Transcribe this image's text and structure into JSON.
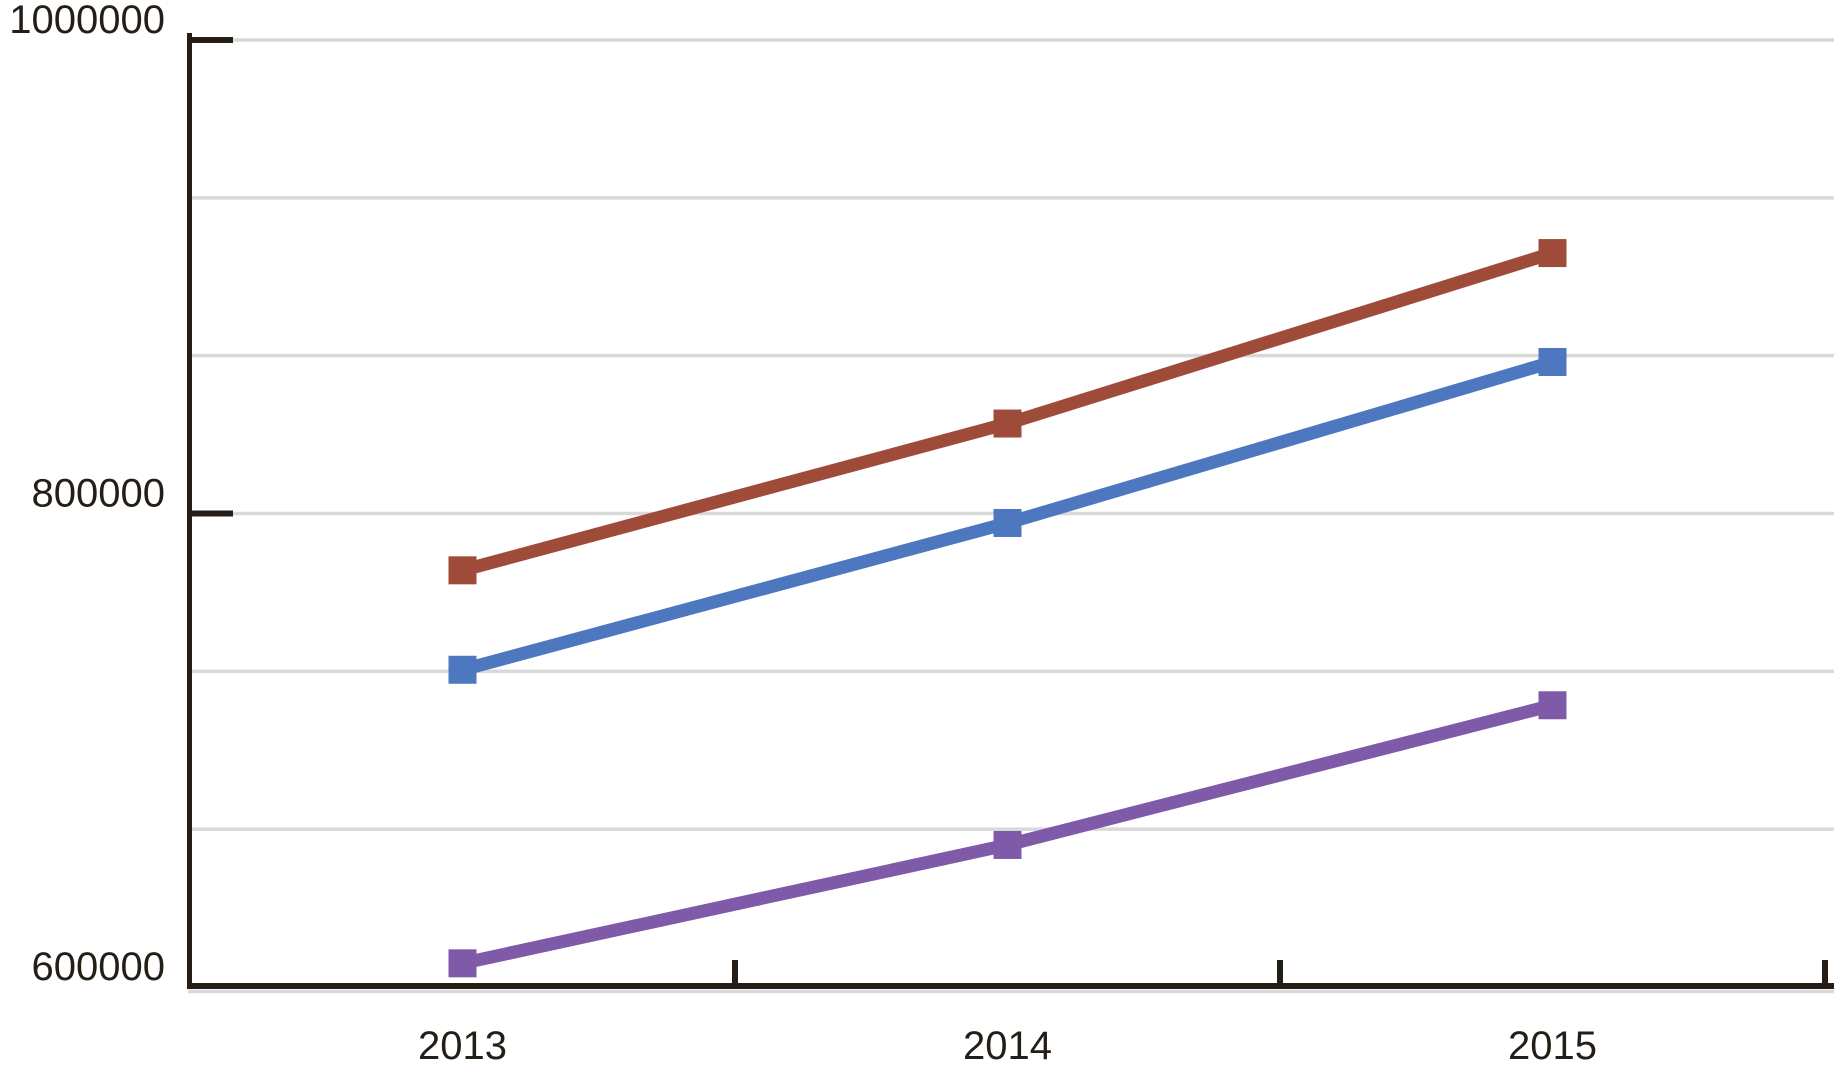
{
  "chart_data": {
    "type": "line",
    "title": "",
    "xlabel": "",
    "ylabel": "",
    "categories": [
      "2013",
      "2014",
      "2015"
    ],
    "series": [
      {
        "name": "red-series",
        "color": "#9e4b39",
        "values": [
          776000,
          838000,
          910000
        ]
      },
      {
        "name": "blue-series",
        "color": "#4d77be",
        "values": [
          734000,
          796000,
          864000
        ]
      },
      {
        "name": "purple-series",
        "color": "#7e5aa8",
        "values": [
          610000,
          660000,
          719000
        ]
      }
    ],
    "ylim": [
      600000,
      1000000
    ],
    "y_ticks": [
      {
        "label": "1000000",
        "value": 1000000
      },
      {
        "label": "800000",
        "value": 800000
      },
      {
        "label": "600000",
        "value": 600000
      }
    ],
    "gridline_divisions": 6,
    "grid": true,
    "legend_position": "none",
    "marker": "square",
    "colors": {
      "axis": "#241e16",
      "text": "#241e16",
      "gridline": "#d9d9d9",
      "background": "#ffffff"
    }
  }
}
